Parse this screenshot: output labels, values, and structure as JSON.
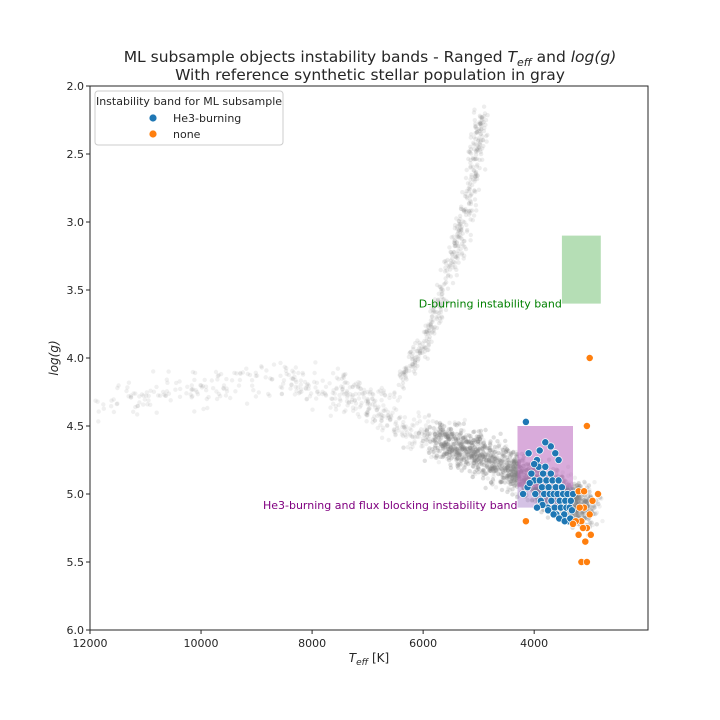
{
  "chart_data": {
    "type": "scatter",
    "title": "ML subsample objects instability bands - Ranged T_eff and log(g)",
    "title_line1_prefix": "ML subsample objects instability bands - Ranged ",
    "title_teff_main": "T",
    "title_teff_sub": "eff",
    "title_and": " and ",
    "title_logg": "log(g)",
    "subtitle": "With reference synthetic stellar population in gray",
    "xlabel": "T_eff [K]",
    "xlabel_main": "T",
    "xlabel_sub": "eff",
    "xlabel_unit": " [K]",
    "ylabel": "log(g)",
    "xlim": [
      12000,
      1950
    ],
    "ylim": [
      6.0,
      2.0
    ],
    "x_ticks": [
      12000,
      10000,
      8000,
      6000,
      4000
    ],
    "x_tick_labels": [
      "12000",
      "10000",
      "8000",
      "6000",
      "4000"
    ],
    "y_ticks": [
      2.0,
      2.5,
      3.0,
      3.5,
      4.0,
      4.5,
      5.0,
      5.5,
      6.0
    ],
    "y_tick_labels": [
      "2.0",
      "2.5",
      "3.0",
      "3.5",
      "4.0",
      "4.5",
      "5.0",
      "5.5",
      "6.0"
    ],
    "grid": false,
    "legend": {
      "title": "Instability band for ML subsample",
      "position": "top-left",
      "entries": [
        {
          "label": "He3-burning",
          "color": "#1f77b4"
        },
        {
          "label": "none",
          "color": "#ff7f0e"
        }
      ]
    },
    "bands": [
      {
        "name": "D-burning instability band",
        "x": [
          3500,
          2800
        ],
        "y": [
          3.1,
          3.6
        ],
        "color": "#2ca02c",
        "opacity": 0.35
      },
      {
        "name": "He3-burning instability band",
        "x": [
          4300,
          3300
        ],
        "y": [
          4.5,
          5.1
        ],
        "color": "#9467bd",
        "opacity": 0.4
      },
      {
        "name": "flux blocking instability band",
        "x": [
          4300,
          3300
        ],
        "y": [
          4.5,
          4.95
        ],
        "color": "#e377c2",
        "opacity": 0.3
      }
    ],
    "annotations": [
      {
        "text": "D-burning instability band",
        "x": 3500,
        "y": 3.6,
        "color": "#008000"
      },
      {
        "text": "He3-burning and flux blocking instability band",
        "x": 4300,
        "y": 5.08,
        "color": "#800080"
      }
    ],
    "reference_population": {
      "name": "reference synthetic stellar population",
      "color": "#808080",
      "track": [
        {
          "teff": 11800,
          "logg": 4.35
        },
        {
          "teff": 10000,
          "logg": 4.2
        },
        {
          "teff": 8500,
          "logg": 4.15
        },
        {
          "teff": 7500,
          "logg": 4.25
        },
        {
          "teff": 7000,
          "logg": 4.3
        },
        {
          "teff": 6500,
          "logg": 4.5
        },
        {
          "teff": 5800,
          "logg": 4.6
        },
        {
          "teff": 5000,
          "logg": 4.7
        },
        {
          "teff": 4300,
          "logg": 4.85
        },
        {
          "teff": 3800,
          "logg": 4.95
        },
        {
          "teff": 3400,
          "logg": 5.05
        },
        {
          "teff": 3000,
          "logg": 5.1
        }
      ],
      "giant_branch": [
        {
          "teff": 6500,
          "logg": 4.2
        },
        {
          "teff": 6000,
          "logg": 3.9
        },
        {
          "teff": 5700,
          "logg": 3.6
        },
        {
          "teff": 5400,
          "logg": 3.2
        },
        {
          "teff": 5200,
          "logg": 2.9
        },
        {
          "teff": 5050,
          "logg": 2.5
        },
        {
          "teff": 4900,
          "logg": 2.2
        }
      ]
    },
    "series": [
      {
        "name": "He3-burning",
        "color": "#1f77b4",
        "points": [
          [
            4150,
            4.47
          ],
          [
            4200,
            5.0
          ],
          [
            4120,
            4.95
          ],
          [
            4100,
            4.7
          ],
          [
            4050,
            4.85
          ],
          [
            4000,
            4.9
          ],
          [
            3980,
            5.0
          ],
          [
            3950,
            4.75
          ],
          [
            3920,
            4.8
          ],
          [
            3900,
            4.9
          ],
          [
            3880,
            5.05
          ],
          [
            3860,
            4.95
          ],
          [
            3840,
            4.85
          ],
          [
            3820,
            5.0
          ],
          [
            3800,
            4.8
          ],
          [
            3780,
            4.9
          ],
          [
            3760,
            5.1
          ],
          [
            3740,
            4.95
          ],
          [
            3720,
            5.0
          ],
          [
            3700,
            4.85
          ],
          [
            3690,
            5.05
          ],
          [
            3670,
            4.9
          ],
          [
            3650,
            5.0
          ],
          [
            3630,
            5.1
          ],
          [
            3610,
            4.95
          ],
          [
            3600,
            5.15
          ],
          [
            3580,
            5.0
          ],
          [
            3560,
            4.9
          ],
          [
            3540,
            5.05
          ],
          [
            3520,
            5.1
          ],
          [
            3500,
            4.95
          ],
          [
            3480,
            5.0
          ],
          [
            3460,
            5.15
          ],
          [
            3440,
            5.05
          ],
          [
            3420,
            5.1
          ],
          [
            3400,
            5.0
          ],
          [
            3380,
            5.2
          ],
          [
            3360,
            5.1
          ],
          [
            3340,
            5.05
          ],
          [
            3560,
            4.75
          ],
          [
            3620,
            4.7
          ],
          [
            3700,
            4.65
          ],
          [
            3800,
            4.62
          ],
          [
            3900,
            4.68
          ],
          [
            4000,
            4.78
          ],
          [
            4080,
            4.92
          ],
          [
            3750,
            5.12
          ],
          [
            3650,
            5.15
          ],
          [
            3550,
            5.18
          ],
          [
            3450,
            5.2
          ],
          [
            3350,
            5.18
          ],
          [
            3300,
            5.0
          ],
          [
            3320,
            5.12
          ],
          [
            3850,
            5.08
          ],
          [
            3950,
            5.1
          ]
        ]
      },
      {
        "name": "none",
        "color": "#ff7f0e",
        "points": [
          [
            3000,
            4.0
          ],
          [
            3050,
            4.5
          ],
          [
            3150,
            5.5
          ],
          [
            3050,
            5.5
          ],
          [
            2850,
            5.0
          ],
          [
            2950,
            5.05
          ],
          [
            3000,
            5.15
          ],
          [
            3050,
            5.25
          ],
          [
            3100,
            5.1
          ],
          [
            3150,
            5.2
          ],
          [
            3200,
            4.98
          ],
          [
            3200,
            5.3
          ],
          [
            3250,
            5.2
          ],
          [
            3080,
            5.35
          ],
          [
            2980,
            5.3
          ],
          [
            3100,
            4.98
          ],
          [
            3180,
            5.1
          ],
          [
            3120,
            5.25
          ],
          [
            4150,
            5.2
          ],
          [
            3300,
            5.22
          ]
        ]
      }
    ]
  }
}
